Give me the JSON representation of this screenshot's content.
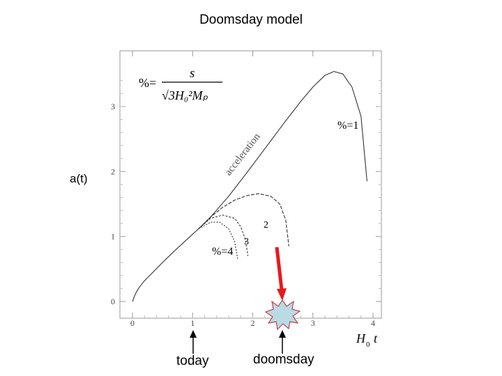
{
  "chart_data": {
    "type": "line",
    "title": "Doomsday model",
    "ylabel": "a(t)",
    "xlabel_main": "H",
    "xlabel_sub": "0",
    "xlabel_tail": "t",
    "xlim": [
      0,
      4
    ],
    "ylim": [
      0,
      3.5
    ],
    "x_ticks": [
      "0",
      "1",
      "2",
      "3",
      "4"
    ],
    "y_ticks": [
      "0",
      "1",
      "2",
      "3"
    ],
    "formula": {
      "lhs": "%=",
      "numerator": "s",
      "denominator": "√3H₀²Mₚ"
    },
    "annotations": {
      "acceleration": "acceleration",
      "s1": "%=1",
      "s2": "2",
      "s3": "3",
      "s4": "%=4"
    },
    "series": [
      {
        "x": [
          0,
          0.05,
          0.1,
          0.2,
          0.35,
          0.5,
          0.7,
          0.9,
          1.1,
          1.3,
          1.6,
          1.9,
          2.2,
          2.5,
          2.8,
          3.0,
          3.2,
          3.35,
          3.5,
          3.65,
          3.8,
          3.9
        ],
        "y": [
          0,
          0.12,
          0.2,
          0.32,
          0.46,
          0.6,
          0.78,
          0.95,
          1.12,
          1.3,
          1.62,
          1.98,
          2.35,
          2.72,
          3.08,
          3.3,
          3.48,
          3.54,
          3.5,
          3.3,
          2.85,
          1.85
        ]
      },
      {
        "x": [
          1.1,
          1.3,
          1.5,
          1.7,
          1.9,
          2.1,
          2.3,
          2.45,
          2.55,
          2.6
        ],
        "y": [
          1.12,
          1.3,
          1.45,
          1.56,
          1.63,
          1.66,
          1.62,
          1.5,
          1.25,
          0.85
        ]
      },
      {
        "x": [
          1.1,
          1.3,
          1.5,
          1.7,
          1.8,
          1.88,
          1.92
        ],
        "y": [
          1.12,
          1.28,
          1.33,
          1.28,
          1.15,
          0.95,
          0.7
        ]
      },
      {
        "x": [
          1.1,
          1.3,
          1.45,
          1.6,
          1.7,
          1.75
        ],
        "y": [
          1.12,
          1.22,
          1.22,
          1.12,
          0.92,
          0.65
        ]
      }
    ]
  },
  "labels": {
    "today": "today",
    "doomsday": "doomsday"
  },
  "colors": {
    "arrow": "#e8181c",
    "explosion_fill": "#b8dbe6",
    "explosion_stroke": "#c0202a",
    "curve": "#333333"
  }
}
